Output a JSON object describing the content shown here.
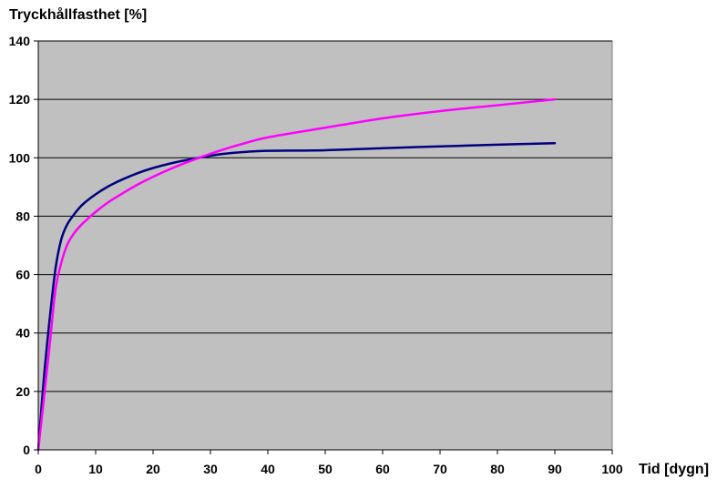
{
  "chart_data": {
    "type": "line",
    "title": "",
    "ylabel": "Tryckhållfasthet [%]",
    "xlabel": "Tid [dygn]",
    "xlim": [
      0,
      100
    ],
    "ylim": [
      0,
      140
    ],
    "x_ticks": [
      0,
      10,
      20,
      30,
      40,
      50,
      60,
      70,
      80,
      90,
      100
    ],
    "y_ticks": [
      0,
      20,
      40,
      60,
      80,
      100,
      120,
      140
    ],
    "x_tick_labels": [
      "0",
      "10",
      "20",
      "30",
      "40",
      "50",
      "60",
      "70",
      "80",
      "90",
      "100"
    ],
    "y_tick_labels": [
      "0",
      "20",
      "40",
      "60",
      "80",
      "100",
      "120",
      "140"
    ],
    "grid": "horizontal",
    "legend": "none",
    "background_color": "#c0c0c0",
    "series": [
      {
        "color": "#000080",
        "x": [
          0,
          1,
          2,
          3,
          4,
          5,
          6,
          7,
          8,
          10,
          12,
          14,
          17,
          20,
          24,
          28,
          32,
          36,
          40,
          50,
          60,
          70,
          80,
          90
        ],
        "y": [
          0,
          25,
          45,
          62,
          72,
          77,
          80,
          82.5,
          84.5,
          87.5,
          90,
          92,
          94.5,
          96.5,
          98.5,
          100,
          101.3,
          102,
          102.4,
          102.6,
          103.3,
          103.9,
          104.5,
          105
        ]
      },
      {
        "color": "#ff00ff",
        "x": [
          0,
          1,
          2,
          3,
          4,
          5,
          6,
          7,
          8,
          10,
          12,
          14,
          17,
          20,
          24,
          28,
          32,
          36,
          40,
          50,
          60,
          70,
          80,
          90
        ],
        "y": [
          0,
          18,
          36,
          55,
          64,
          70,
          73.5,
          76,
          78,
          81.5,
          84.5,
          87,
          90.5,
          93.5,
          97,
          100,
          102.7,
          105,
          107,
          110.3,
          113.5,
          116,
          118,
          120
        ]
      }
    ]
  }
}
